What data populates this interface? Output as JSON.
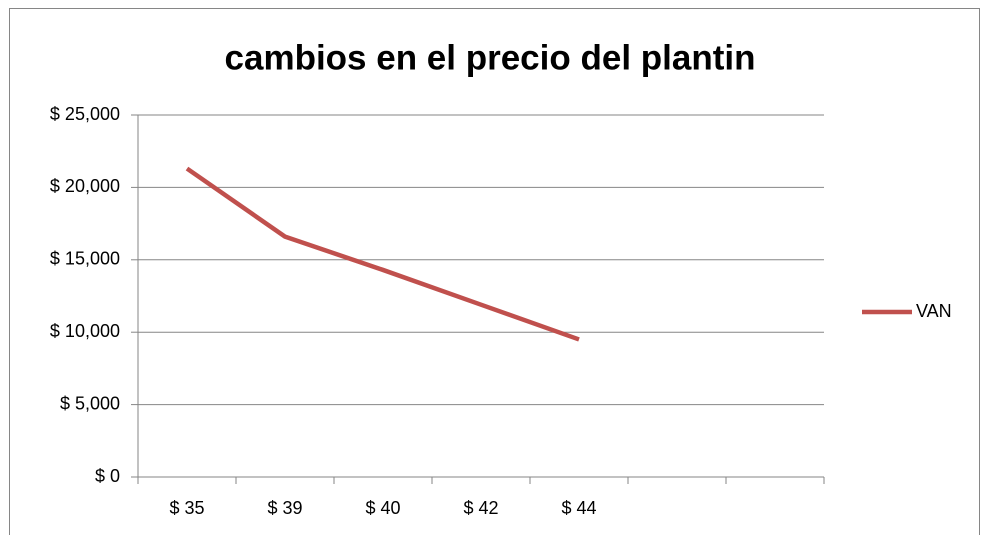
{
  "chart_data": {
    "type": "line",
    "title": "cambios en el precio del plantin",
    "categories": [
      "$ 35",
      "$ 39",
      "$ 40",
      "$ 42",
      "$ 44",
      null,
      null
    ],
    "series": [
      {
        "name": "VAN",
        "color": "#c0504d",
        "values": [
          21300,
          16600,
          14300,
          11900,
          9500,
          null,
          null
        ]
      }
    ],
    "ylim": [
      0,
      25000
    ],
    "yticks": [
      {
        "value": 0,
        "label": "$ 0"
      },
      {
        "value": 5000,
        "label": "$ 5,000"
      },
      {
        "value": 10000,
        "label": "$ 10,000"
      },
      {
        "value": 15000,
        "label": "$ 15,000"
      },
      {
        "value": 20000,
        "label": "$ 20,000"
      },
      {
        "value": 25000,
        "label": "$ 25,000"
      }
    ],
    "grid": true,
    "legend": "right"
  }
}
